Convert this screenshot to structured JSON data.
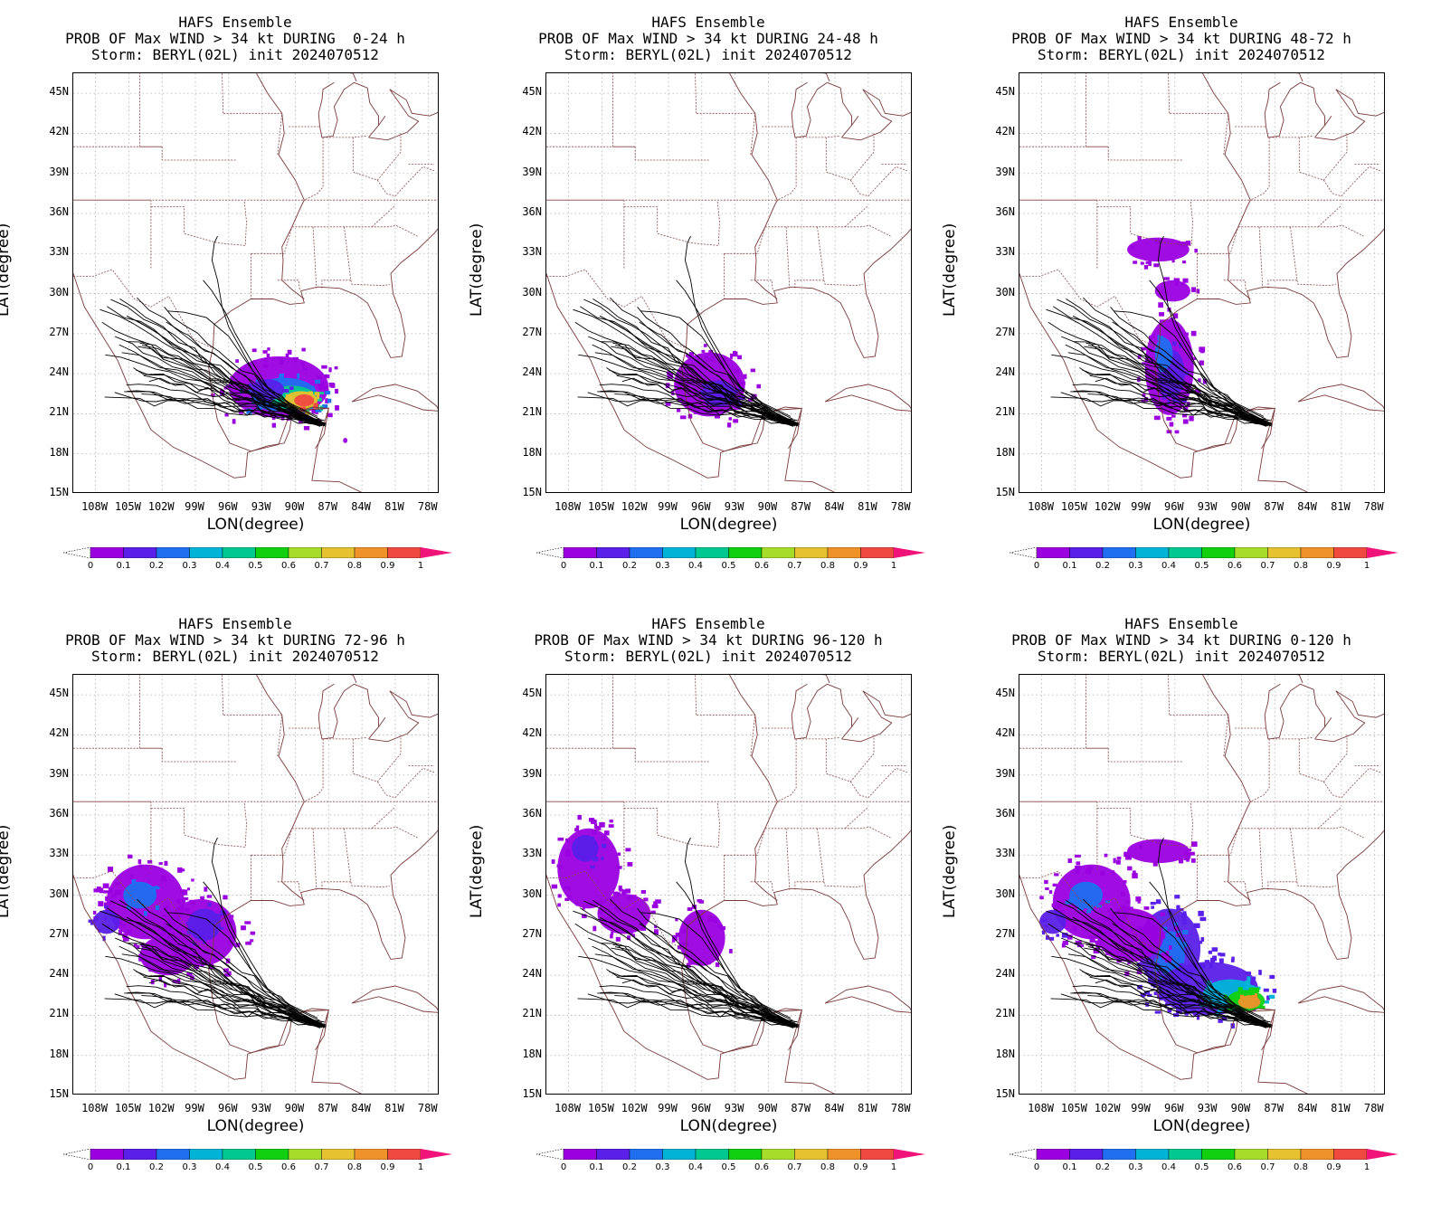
{
  "panels": [
    {
      "title1": "HAFS Ensemble",
      "title2": "PROB OF Max WIND > 34 kt DURING  0-24 h",
      "title3": "Storm: BERYL(02L) init 2024070512",
      "swath": "p1"
    },
    {
      "title1": "HAFS Ensemble",
      "title2": "PROB OF Max WIND > 34 kt DURING 24-48 h",
      "title3": "Storm: BERYL(02L) init 2024070512",
      "swath": "p2"
    },
    {
      "title1": "HAFS Ensemble",
      "title2": "PROB OF Max WIND > 34 kt DURING 48-72 h",
      "title3": "Storm: BERYL(02L) init 2024070512",
      "swath": "p3"
    },
    {
      "title1": "HAFS Ensemble",
      "title2": "PROB OF Max WIND > 34 kt DURING 72-96 h",
      "title3": "Storm: BERYL(02L) init 2024070512",
      "swath": "p4"
    },
    {
      "title1": "HAFS Ensemble",
      "title2": "PROB OF Max WIND > 34 kt DURING 96-120 h",
      "title3": "Storm: BERYL(02L) init 2024070512",
      "swath": "p5"
    },
    {
      "title1": "HAFS Ensemble",
      "title2": "PROB OF Max WIND > 34 kt DURING 0-120 h",
      "title3": "Storm: BERYL(02L) init 2024070512",
      "swath": "p6"
    }
  ],
  "axes": {
    "xlabel": "LON(degree)",
    "ylabel": "LAT(degree)",
    "lat_ticks": [
      "45N",
      "42N",
      "39N",
      "36N",
      "33N",
      "30N",
      "27N",
      "24N",
      "21N",
      "18N",
      "15N"
    ],
    "lon_ticks": [
      "108W",
      "105W",
      "102W",
      "99W",
      "96W",
      "93W",
      "90W",
      "87W",
      "84W",
      "81W",
      "78W"
    ]
  },
  "colorbar": {
    "labels": [
      "0",
      "0.1",
      "0.2",
      "0.3",
      "0.4",
      "0.5",
      "0.6",
      "0.7",
      "0.8",
      "0.9",
      "1"
    ],
    "colors": [
      "#ffffff",
      "#9a00e0",
      "#5a1fe8",
      "#1f6ff0",
      "#00b4d8",
      "#00c890",
      "#10d010",
      "#a6dc2a",
      "#e6c230",
      "#f0922a",
      "#f04a40",
      "#f0147a"
    ]
  }
}
